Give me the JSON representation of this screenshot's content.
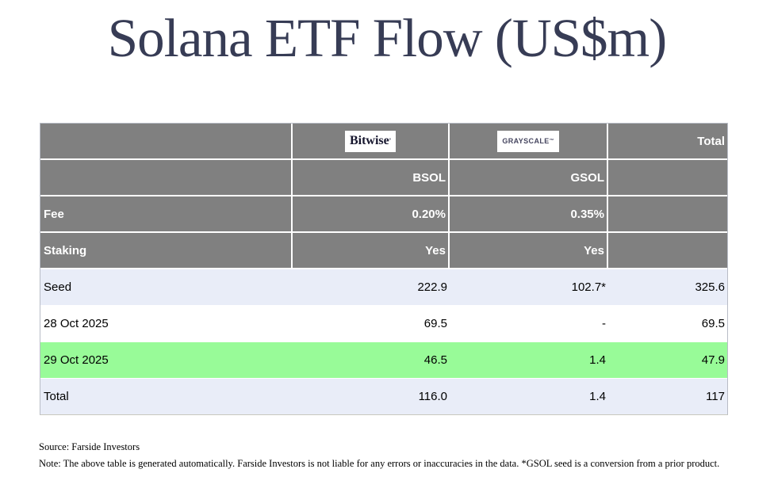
{
  "page": {
    "title": "Solana ETF Flow (US$m)"
  },
  "colors": {
    "header_bg": "#808080",
    "header_text": "#ffffff",
    "alt_row_bg": "#e9edf8",
    "highlight_row_bg": "#98fb98",
    "plain_row_bg": "#ffffff",
    "title_color": "#373c55",
    "data_text": "#000000"
  },
  "table": {
    "logos": {
      "bitwise": "Bitwise",
      "bitwise_mark": "ʼ",
      "grayscale": "GRAYSCALE",
      "grayscale_mark": "™"
    },
    "header_total": "Total",
    "rows": [
      {
        "label": "",
        "bsol": "BSOL",
        "gsol": "GSOL",
        "total": ""
      },
      {
        "label": "Fee",
        "bsol": "0.20%",
        "gsol": "0.35%",
        "total": ""
      },
      {
        "label": "Staking",
        "bsol": "Yes",
        "gsol": "Yes",
        "total": ""
      },
      {
        "label": "Seed",
        "bsol": "222.9",
        "gsol": "102.7*",
        "total": "325.6"
      },
      {
        "label": "28 Oct 2025",
        "bsol": "69.5",
        "gsol": "-",
        "total": "69.5"
      },
      {
        "label": "29 Oct 2025",
        "bsol": "46.5",
        "gsol": "1.4",
        "total": "47.9"
      },
      {
        "label": "Total",
        "bsol": "116.0",
        "gsol": "1.4",
        "total": "117"
      }
    ]
  },
  "footer": {
    "source": "Source: Farside Investors",
    "note": "Note: The above table is generated automatically. Farside Investors is not liable for any errors or inaccuracies in the data. *GSOL seed is a conversion from a prior product."
  },
  "chart_data": {
    "type": "table",
    "title": "Solana ETF Flow (US$m)",
    "columns": [
      "",
      "BSOL (Bitwise)",
      "GSOL (Grayscale)",
      "Total"
    ],
    "rows": [
      [
        "Fee",
        "0.20%",
        "0.35%",
        ""
      ],
      [
        "Staking",
        "Yes",
        "Yes",
        ""
      ],
      [
        "Seed",
        222.9,
        "102.7*",
        325.6
      ],
      [
        "28 Oct 2025",
        69.5,
        "-",
        69.5
      ],
      [
        "29 Oct 2025",
        46.5,
        1.4,
        47.9
      ],
      [
        "Total",
        116.0,
        1.4,
        117
      ]
    ],
    "highlighted_row": "29 Oct 2025",
    "footnote": "*GSOL seed is a conversion from a prior product."
  }
}
